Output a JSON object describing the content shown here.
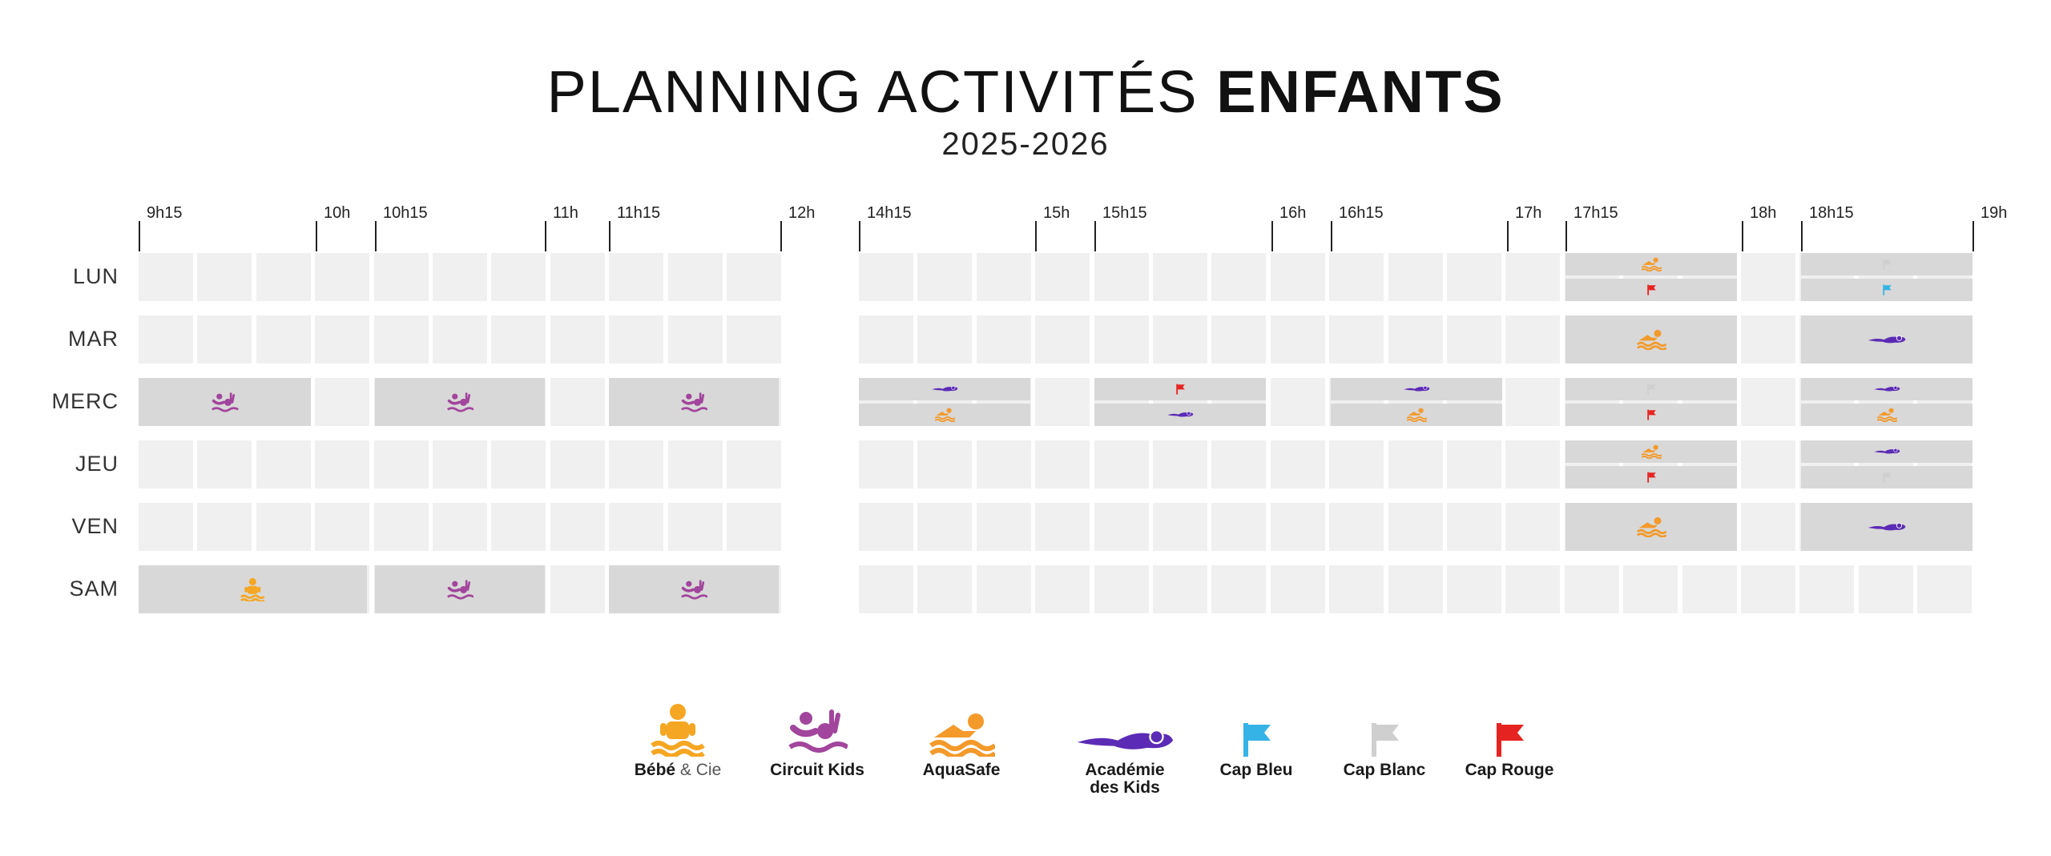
{
  "title": {
    "light": "PLANNING ACTIVITÉS",
    "bold": "ENFANTS"
  },
  "year": "2025-2026",
  "time_labels": [
    "9h15",
    "10h",
    "10h15",
    "11h",
    "11h15",
    "12h",
    "14h15",
    "15h",
    "15h15",
    "16h",
    "16h15",
    "17h",
    "17h15",
    "18h",
    "18h15",
    "19h"
  ],
  "days": [
    "LUN",
    "MAR",
    "MERC",
    "JEU",
    "VEN",
    "SAM"
  ],
  "colors": {
    "bebe": "#f5a623",
    "circuit": "#a2459c",
    "aquasafe": "#f39a2b",
    "academie": "#5b2bb5",
    "cap_bleu": "#35b3e6",
    "cap_blanc": "#cfcfcf",
    "cap_rouge": "#e52421"
  },
  "schedule": {
    "LUN": {
      "17h15": [
        "aquasafe",
        "cap_rouge"
      ],
      "18h15": [
        "cap_blanc",
        "cap_bleu"
      ]
    },
    "MAR": {
      "17h15": [
        "aquasafe"
      ],
      "18h15": [
        "academie"
      ]
    },
    "MERC": {
      "9h15": [
        "circuit"
      ],
      "10h15": [
        "circuit"
      ],
      "11h15": [
        "circuit"
      ],
      "14h15": [
        "academie",
        "aquasafe"
      ],
      "15h15": [
        "cap_rouge",
        "academie"
      ],
      "16h15": [
        "academie",
        "aquasafe"
      ],
      "17h15": [
        "cap_blanc",
        "cap_rouge"
      ],
      "18h15": [
        "academie",
        "aquasafe"
      ]
    },
    "JEU": {
      "17h15": [
        "aquasafe",
        "cap_rouge"
      ],
      "18h15": [
        "academie",
        "cap_blanc"
      ]
    },
    "VEN": {
      "17h15": [
        "aquasafe"
      ],
      "18h15": [
        "academie"
      ]
    },
    "SAM": {
      "9h15_long": [
        "bebe"
      ],
      "10h15": [
        "circuit"
      ],
      "11h15": [
        "circuit"
      ]
    }
  },
  "legend": [
    {
      "key": "bebe",
      "label": "Bébé",
      "label_sub": " & Cie"
    },
    {
      "key": "circuit",
      "label": "Circuit Kids",
      "label_sub": ""
    },
    {
      "key": "aquasafe",
      "label": "AquaSafe",
      "label_sub": ""
    },
    {
      "key": "academie",
      "label": "Académie",
      "label2": "des Kids",
      "label_sub": ""
    },
    {
      "key": "cap_bleu",
      "label": "Cap Bleu",
      "label_sub": ""
    },
    {
      "key": "cap_blanc",
      "label": "Cap Blanc",
      "label_sub": ""
    },
    {
      "key": "cap_rouge",
      "label": "Cap Rouge",
      "label_sub": ""
    }
  ]
}
